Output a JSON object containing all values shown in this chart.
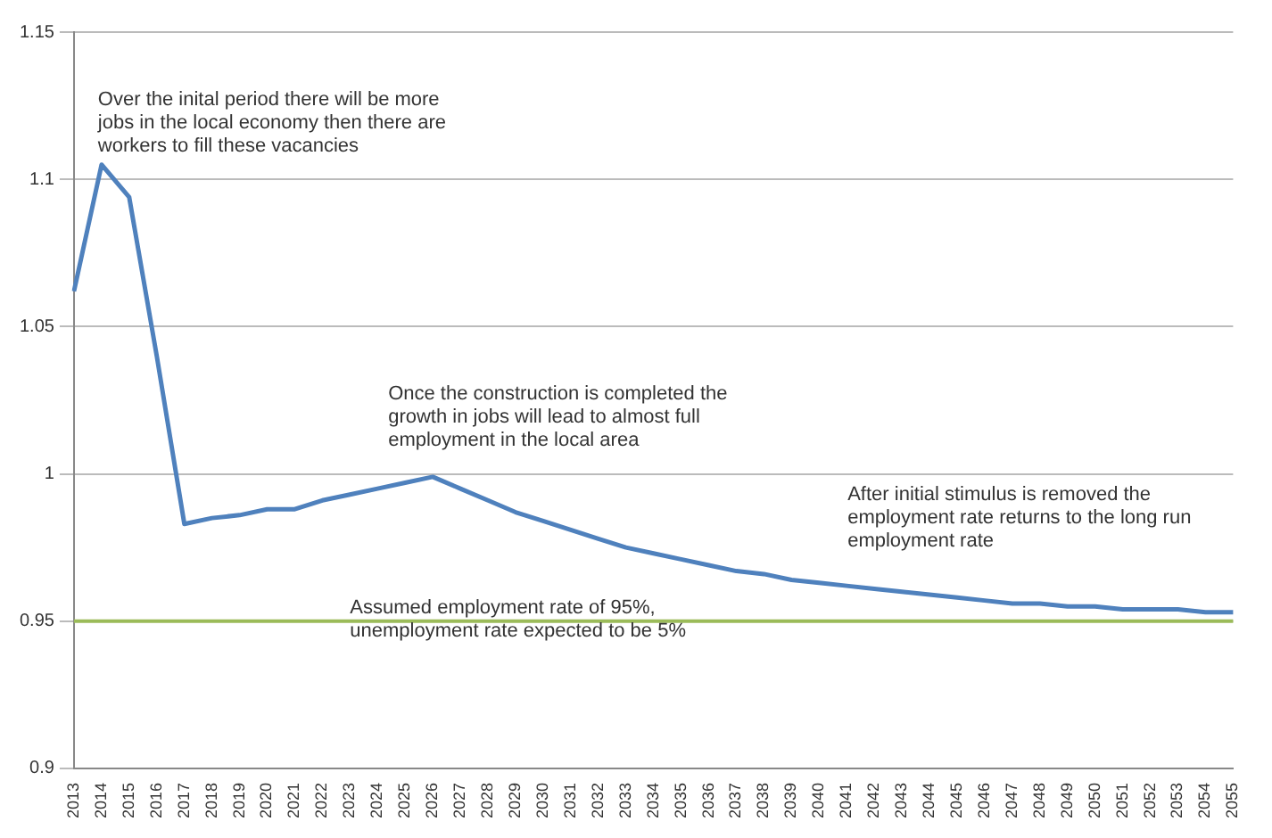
{
  "chart_data": {
    "type": "line",
    "categories": [
      "2013",
      "2014",
      "2015",
      "2016",
      "2017",
      "2018",
      "2019",
      "2020",
      "2021",
      "2022",
      "2023",
      "2024",
      "2025",
      "2026",
      "2027",
      "2028",
      "2029",
      "2030",
      "2031",
      "2032",
      "2033",
      "2034",
      "2035",
      "2036",
      "2037",
      "2038",
      "2039",
      "2040",
      "2041",
      "2042",
      "2043",
      "2044",
      "2045",
      "2046",
      "2047",
      "2048",
      "2049",
      "2050",
      "2051",
      "2052",
      "2053",
      "2054",
      "2055"
    ],
    "series": [
      {
        "color": "#4f81bd",
        "values": [
          1.062,
          1.105,
          1.094,
          1.04,
          0.983,
          0.985,
          0.986,
          0.988,
          0.988,
          0.991,
          0.993,
          0.995,
          0.997,
          0.999,
          0.995,
          0.991,
          0.987,
          0.984,
          0.981,
          0.978,
          0.975,
          0.973,
          0.971,
          0.969,
          0.967,
          0.966,
          0.964,
          0.963,
          0.962,
          0.961,
          0.96,
          0.959,
          0.958,
          0.957,
          0.956,
          0.956,
          0.955,
          0.955,
          0.954,
          0.954,
          0.954,
          0.953,
          0.953
        ]
      }
    ],
    "ylim": [
      0.9,
      1.15
    ],
    "yticks": [
      0.9,
      0.95,
      1,
      1.05,
      1.1,
      1.15
    ],
    "grid": "y",
    "legend": false,
    "marker": "none",
    "ref_lines": [
      {
        "axis": "y",
        "value": 0.95,
        "color": "#9bbb59",
        "label": "Assumed employment rate of 95%,\nunemployment rate expected to be 5%"
      }
    ],
    "annotations": [
      {
        "text": "Over the inital period there will be more\njobs in the local economy then there are\nworkers to fill these vacancies",
        "x": "2014",
        "y": 1.105
      },
      {
        "text": "Once the construction is completed the\ngrowth in jobs will lead to almost full\nemployment in the local area",
        "x": "2026",
        "y": 0.999
      },
      {
        "text": "After initial stimulus is removed the\nemployment rate returns to the long run\nemployment rate",
        "x": "2042",
        "y": 0.961
      }
    ]
  }
}
